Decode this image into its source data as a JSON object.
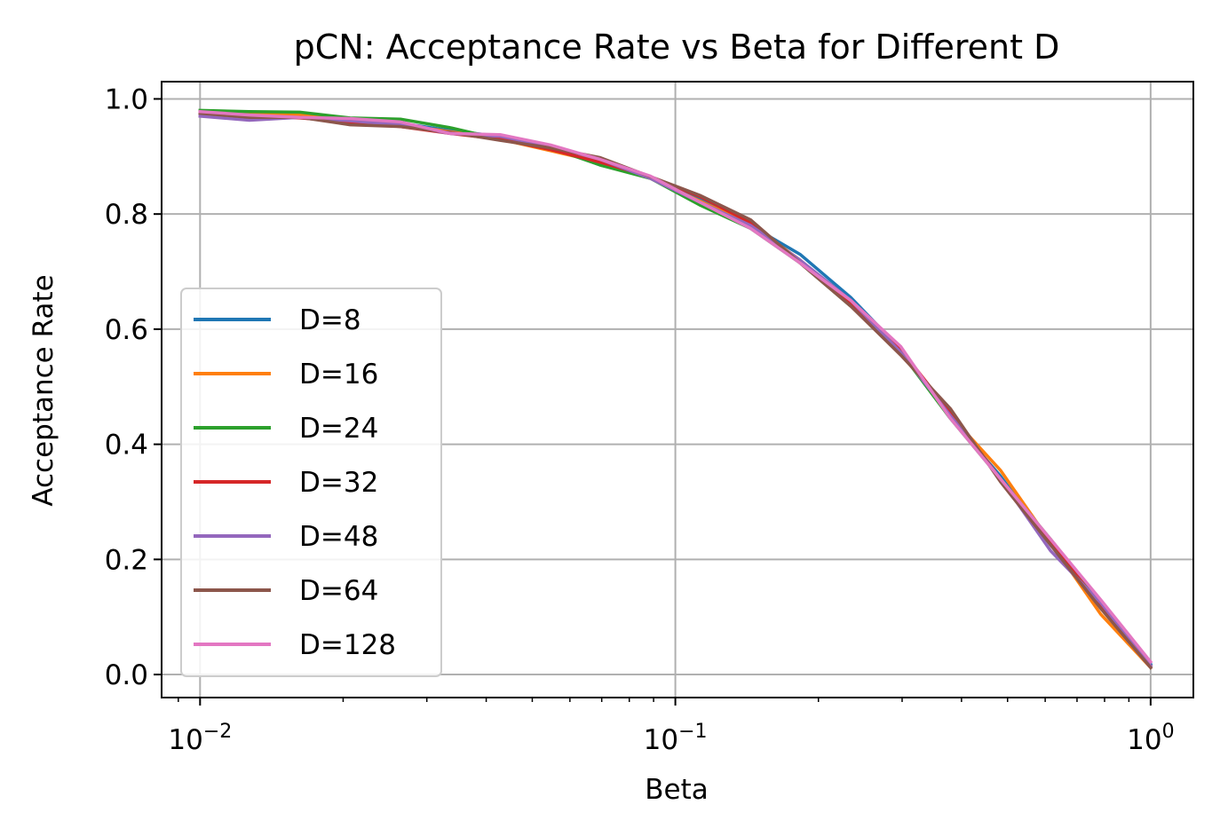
{
  "chart_data": {
    "type": "line",
    "title": "pCN: Acceptance Rate vs Beta for Different D",
    "xlabel": "Beta",
    "ylabel": "Acceptance Rate",
    "xscale": "log",
    "xlim": [
      0.0083,
      1.23
    ],
    "ylim": [
      -0.04,
      1.03
    ],
    "grid": true,
    "legend_loc": "lower-left",
    "x": [
      0.01,
      0.0127,
      0.0162,
      0.0207,
      0.0264,
      0.0336,
      0.0428,
      0.0546,
      0.0695,
      0.0886,
      0.113,
      0.144,
      0.183,
      0.234,
      0.298,
      0.379,
      0.483,
      0.616,
      0.785,
      1.0
    ],
    "x_ticks": [
      {
        "value": 0.01,
        "base": "10",
        "exp": "−2"
      },
      {
        "value": 0.1,
        "base": "10",
        "exp": "−1"
      },
      {
        "value": 1,
        "base": "10",
        "exp": "0"
      }
    ],
    "y_ticks": [
      {
        "value": 0.0,
        "label": "0.0"
      },
      {
        "value": 0.2,
        "label": "0.2"
      },
      {
        "value": 0.4,
        "label": "0.4"
      },
      {
        "value": 0.6,
        "label": "0.6"
      },
      {
        "value": 0.8,
        "label": "0.8"
      },
      {
        "value": 1.0,
        "label": "1.0"
      }
    ],
    "series": [
      {
        "name": "D=8",
        "color": "#1f77b4",
        "values": [
          0.975,
          0.972,
          0.97,
          0.963,
          0.958,
          0.945,
          0.935,
          0.917,
          0.885,
          0.865,
          0.825,
          0.78,
          0.73,
          0.655,
          0.565,
          0.445,
          0.345,
          0.225,
          0.125,
          0.018
        ]
      },
      {
        "name": "D=16",
        "color": "#ff7f0e",
        "values": [
          0.978,
          0.975,
          0.972,
          0.962,
          0.955,
          0.943,
          0.93,
          0.91,
          0.89,
          0.862,
          0.822,
          0.782,
          0.72,
          0.645,
          0.56,
          0.45,
          0.355,
          0.23,
          0.105,
          0.012
        ]
      },
      {
        "name": "D=24",
        "color": "#2ca02c",
        "values": [
          0.98,
          0.978,
          0.977,
          0.967,
          0.965,
          0.95,
          0.93,
          0.915,
          0.885,
          0.862,
          0.815,
          0.775,
          0.715,
          0.64,
          0.56,
          0.445,
          0.34,
          0.235,
          0.125,
          0.015
        ]
      },
      {
        "name": "D=32",
        "color": "#d62728",
        "values": [
          0.976,
          0.97,
          0.967,
          0.96,
          0.952,
          0.94,
          0.93,
          0.912,
          0.89,
          0.865,
          0.83,
          0.785,
          0.715,
          0.645,
          0.565,
          0.455,
          0.34,
          0.228,
          0.12,
          0.015
        ]
      },
      {
        "name": "D=48",
        "color": "#9467bd",
        "values": [
          0.97,
          0.963,
          0.968,
          0.962,
          0.955,
          0.94,
          0.935,
          0.918,
          0.895,
          0.862,
          0.82,
          0.78,
          0.72,
          0.65,
          0.56,
          0.45,
          0.34,
          0.215,
          0.125,
          0.015
        ]
      },
      {
        "name": "D=64",
        "color": "#8c564b",
        "values": [
          0.975,
          0.968,
          0.968,
          0.955,
          0.952,
          0.942,
          0.928,
          0.915,
          0.898,
          0.865,
          0.832,
          0.79,
          0.715,
          0.64,
          0.555,
          0.462,
          0.335,
          0.225,
          0.115,
          0.012
        ]
      },
      {
        "name": "D=128",
        "color": "#e377c2",
        "values": [
          0.978,
          0.972,
          0.968,
          0.966,
          0.96,
          0.94,
          0.938,
          0.92,
          0.895,
          0.866,
          0.82,
          0.775,
          0.715,
          0.65,
          0.57,
          0.445,
          0.34,
          0.235,
          0.13,
          0.022
        ]
      }
    ],
    "colors": {
      "grid": "#b0b0b0",
      "axes": "#000000",
      "legend_border": "#cccccc",
      "background": "#ffffff"
    }
  }
}
